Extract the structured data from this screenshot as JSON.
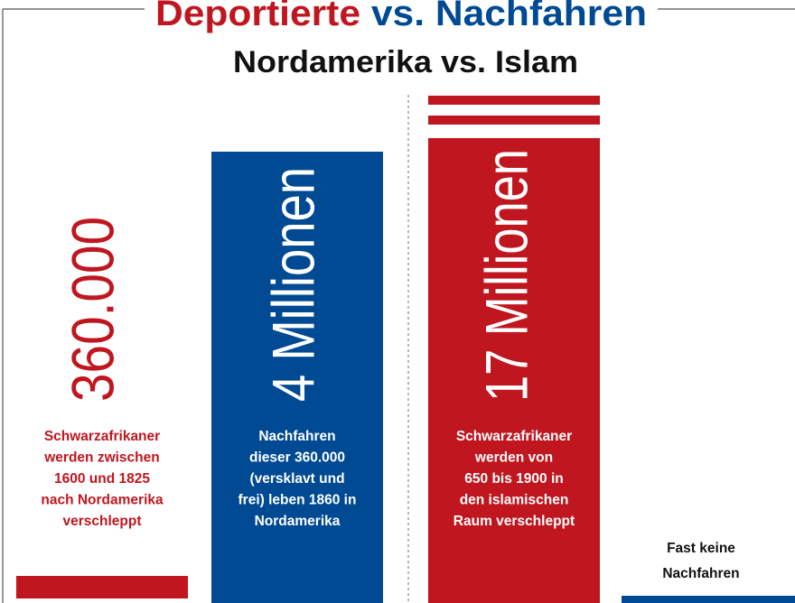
{
  "title": {
    "part1": "Deportierte",
    "part2": "vs.",
    "part3": "Nachfahren"
  },
  "subtitle": "Nordamerika vs. Islam",
  "columns": [
    {
      "figure": "360.000",
      "caption": [
        "Schwarzafrikaner",
        "werden zwischen",
        "1600 und 1825",
        "nach Nordamerika",
        "verschleppt"
      ]
    },
    {
      "figure": "4 Millionen",
      "caption": [
        "Nachfahren",
        "dieser 360.000",
        "(versklavt und",
        "frei) leben 1860 in",
        "Nordamerika"
      ]
    },
    {
      "figure": "17 Millionen",
      "caption": [
        "Schwarzafrikaner",
        "werden von",
        "650 bis 1900 in",
        "den islamischen",
        "Raum verschleppt"
      ]
    }
  ],
  "note": [
    "Fast keine",
    "Nachfahren"
  ]
}
